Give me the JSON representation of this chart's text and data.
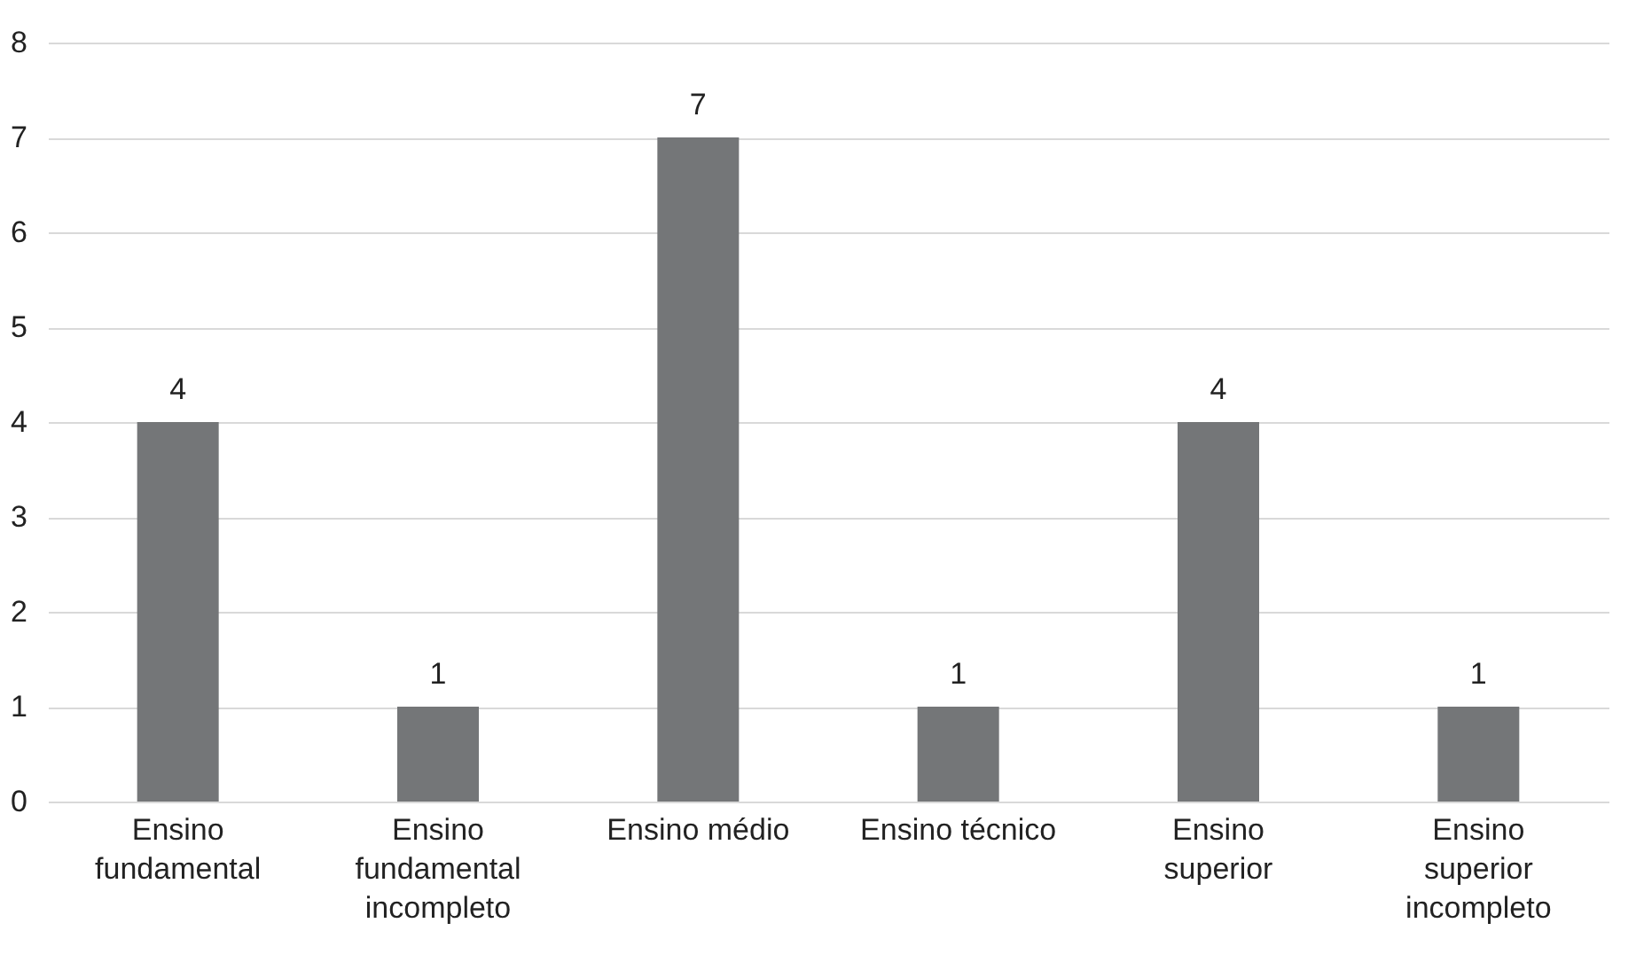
{
  "chart_data": {
    "type": "bar",
    "categories": [
      "Ensino fundamental",
      "Ensino fundamental incompleto",
      "Ensino médio",
      "Ensino técnico",
      "Ensino superior",
      "Ensino superior incompleto"
    ],
    "values": [
      4,
      1,
      7,
      1,
      4,
      1
    ],
    "color": "#747678",
    "ylim": [
      0,
      8
    ],
    "yticks": [
      0,
      1,
      2,
      3,
      4,
      5,
      6,
      7,
      8
    ],
    "grid": "y",
    "data_labels": true
  }
}
